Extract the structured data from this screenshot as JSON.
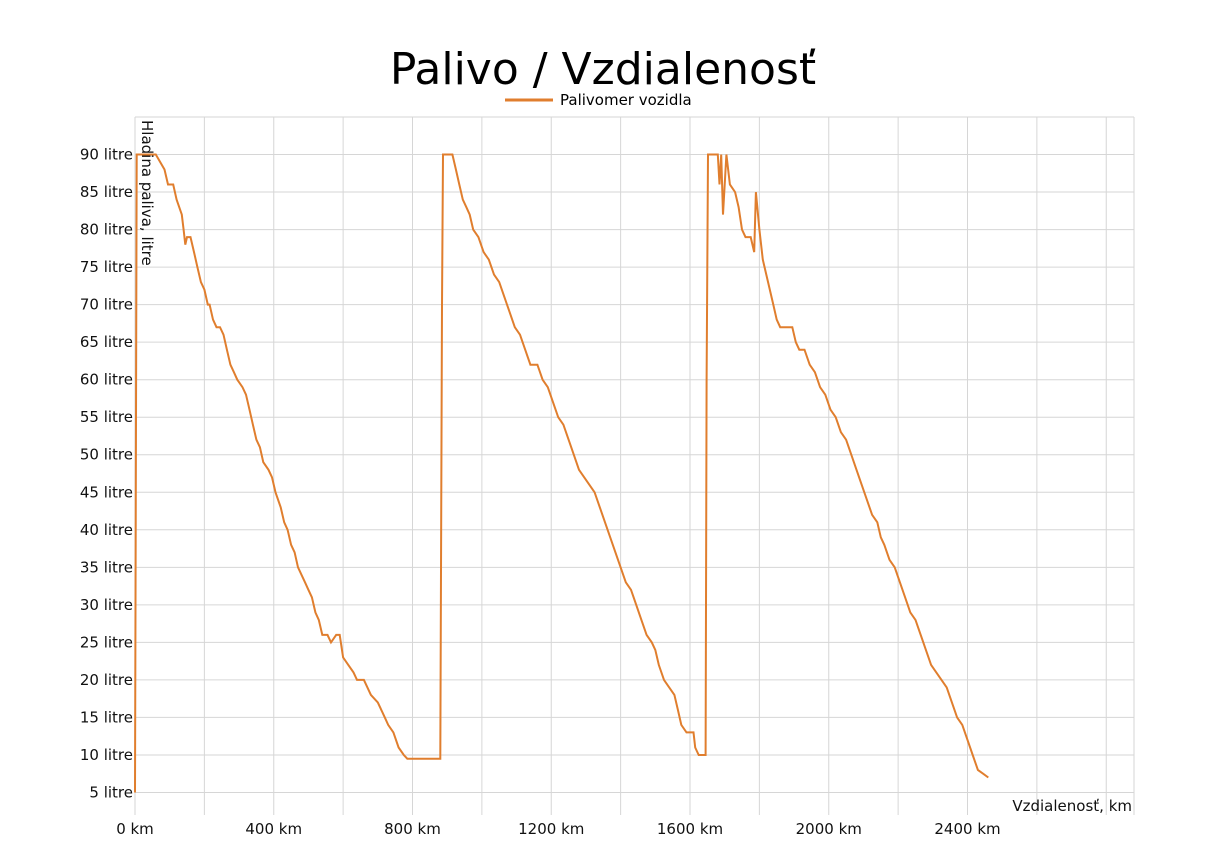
{
  "chart_data": {
    "type": "line",
    "title": "Palivo / Vzdialenosť",
    "xlabel": "Vzdialenosť, km",
    "ylabel": "Hladina paliva, litre",
    "xlim": [
      0,
      2880
    ],
    "ylim": [
      2,
      95
    ],
    "x_ticks": [
      {
        "value": 0,
        "label": "0 km"
      },
      {
        "value": 400,
        "label": "400 km"
      },
      {
        "value": 800,
        "label": "800 km"
      },
      {
        "value": 1200,
        "label": "1200 km"
      },
      {
        "value": 1600,
        "label": "1600 km"
      },
      {
        "value": 2000,
        "label": "2000 km"
      },
      {
        "value": 2400,
        "label": "2400 km"
      }
    ],
    "x_grid": [
      0,
      200,
      400,
      600,
      800,
      1000,
      1200,
      1400,
      1600,
      1800,
      2000,
      2200,
      2400,
      2600,
      2800
    ],
    "y_ticks": [
      {
        "value": 5,
        "label": "5 litre"
      },
      {
        "value": 10,
        "label": "10 litre"
      },
      {
        "value": 15,
        "label": "15 litre"
      },
      {
        "value": 20,
        "label": "20 litre"
      },
      {
        "value": 25,
        "label": "25 litre"
      },
      {
        "value": 30,
        "label": "30 litre"
      },
      {
        "value": 35,
        "label": "35 litre"
      },
      {
        "value": 40,
        "label": "40 litre"
      },
      {
        "value": 45,
        "label": "45 litre"
      },
      {
        "value": 50,
        "label": "50 litre"
      },
      {
        "value": 55,
        "label": "55 litre"
      },
      {
        "value": 60,
        "label": "60 litre"
      },
      {
        "value": 65,
        "label": "65 litre"
      },
      {
        "value": 70,
        "label": "70 litre"
      },
      {
        "value": 75,
        "label": "75 litre"
      },
      {
        "value": 80,
        "label": "80 litre"
      },
      {
        "value": 85,
        "label": "85 litre"
      },
      {
        "value": 90,
        "label": "90 litre"
      }
    ],
    "grid": true,
    "legend_position": "top-center",
    "series": [
      {
        "name": "Palivomer vozidla",
        "color": "#e07e2e",
        "points": [
          [
            0,
            5
          ],
          [
            5,
            90
          ],
          [
            30,
            90
          ],
          [
            60,
            90
          ],
          [
            85,
            88
          ],
          [
            95,
            86
          ],
          [
            110,
            86
          ],
          [
            120,
            84
          ],
          [
            135,
            82
          ],
          [
            140,
            80
          ],
          [
            145,
            78
          ],
          [
            150,
            79
          ],
          [
            160,
            79
          ],
          [
            170,
            77
          ],
          [
            180,
            75
          ],
          [
            190,
            73
          ],
          [
            200,
            72
          ],
          [
            210,
            70
          ],
          [
            215,
            70
          ],
          [
            225,
            68
          ],
          [
            235,
            67
          ],
          [
            245,
            67
          ],
          [
            255,
            66
          ],
          [
            265,
            64
          ],
          [
            275,
            62
          ],
          [
            285,
            61
          ],
          [
            295,
            60
          ],
          [
            310,
            59
          ],
          [
            320,
            58
          ],
          [
            330,
            56
          ],
          [
            340,
            54
          ],
          [
            350,
            52
          ],
          [
            360,
            51
          ],
          [
            370,
            49
          ],
          [
            385,
            48
          ],
          [
            395,
            47
          ],
          [
            405,
            45
          ],
          [
            420,
            43
          ],
          [
            430,
            41
          ],
          [
            440,
            40
          ],
          [
            450,
            38
          ],
          [
            460,
            37
          ],
          [
            470,
            35
          ],
          [
            480,
            34
          ],
          [
            490,
            33
          ],
          [
            500,
            32
          ],
          [
            510,
            31
          ],
          [
            520,
            29
          ],
          [
            530,
            28
          ],
          [
            540,
            26
          ],
          [
            555,
            26
          ],
          [
            565,
            25
          ],
          [
            580,
            26
          ],
          [
            590,
            26
          ],
          [
            600,
            23
          ],
          [
            615,
            22
          ],
          [
            630,
            21
          ],
          [
            640,
            20
          ],
          [
            660,
            20
          ],
          [
            680,
            18
          ],
          [
            700,
            17
          ],
          [
            710,
            16
          ],
          [
            720,
            15
          ],
          [
            730,
            14
          ],
          [
            745,
            13
          ],
          [
            760,
            11
          ],
          [
            775,
            10
          ],
          [
            785,
            9.5
          ],
          [
            800,
            9.5
          ],
          [
            800,
            9.5
          ],
          [
            880,
            9.5
          ],
          [
            885,
            70
          ],
          [
            888,
            90
          ],
          [
            900,
            90
          ],
          [
            915,
            90
          ],
          [
            925,
            88
          ],
          [
            935,
            86
          ],
          [
            945,
            84
          ],
          [
            955,
            83
          ],
          [
            965,
            82
          ],
          [
            975,
            80
          ],
          [
            990,
            79
          ],
          [
            1005,
            77
          ],
          [
            1020,
            76
          ],
          [
            1035,
            74
          ],
          [
            1050,
            73
          ],
          [
            1065,
            71
          ],
          [
            1080,
            69
          ],
          [
            1095,
            67
          ],
          [
            1110,
            66
          ],
          [
            1125,
            64
          ],
          [
            1140,
            62
          ],
          [
            1160,
            62
          ],
          [
            1175,
            60
          ],
          [
            1190,
            59
          ],
          [
            1205,
            57
          ],
          [
            1220,
            55
          ],
          [
            1235,
            54
          ],
          [
            1250,
            52
          ],
          [
            1265,
            50
          ],
          [
            1280,
            48
          ],
          [
            1295,
            47
          ],
          [
            1310,
            46
          ],
          [
            1325,
            45
          ],
          [
            1340,
            43
          ],
          [
            1355,
            41
          ],
          [
            1370,
            39
          ],
          [
            1385,
            37
          ],
          [
            1400,
            35
          ],
          [
            1415,
            33
          ],
          [
            1430,
            32
          ],
          [
            1445,
            30
          ],
          [
            1460,
            28
          ],
          [
            1475,
            26
          ],
          [
            1490,
            25
          ],
          [
            1500,
            24
          ],
          [
            1510,
            22
          ],
          [
            1525,
            20
          ],
          [
            1540,
            19
          ],
          [
            1555,
            18
          ],
          [
            1565,
            16
          ],
          [
            1575,
            14
          ],
          [
            1590,
            13
          ],
          [
            1600,
            13
          ],
          [
            1610,
            13
          ],
          [
            1615,
            11
          ],
          [
            1625,
            10
          ],
          [
            1645,
            10
          ],
          [
            1648,
            60
          ],
          [
            1652,
            90
          ],
          [
            1680,
            90
          ],
          [
            1685,
            86
          ],
          [
            1690,
            90
          ],
          [
            1695,
            82
          ],
          [
            1705,
            90
          ],
          [
            1715,
            86
          ],
          [
            1730,
            85
          ],
          [
            1740,
            83
          ],
          [
            1750,
            80
          ],
          [
            1760,
            79
          ],
          [
            1775,
            79
          ],
          [
            1785,
            77
          ],
          [
            1790,
            85
          ],
          [
            1800,
            80
          ],
          [
            1810,
            76
          ],
          [
            1820,
            74
          ],
          [
            1830,
            72
          ],
          [
            1840,
            70
          ],
          [
            1850,
            68
          ],
          [
            1860,
            67
          ],
          [
            1880,
            67
          ],
          [
            1895,
            67
          ],
          [
            1905,
            65
          ],
          [
            1915,
            64
          ],
          [
            1930,
            64
          ],
          [
            1945,
            62
          ],
          [
            1960,
            61
          ],
          [
            1975,
            59
          ],
          [
            1990,
            58
          ],
          [
            2005,
            56
          ],
          [
            2020,
            55
          ],
          [
            2035,
            53
          ],
          [
            2050,
            52
          ],
          [
            2065,
            50
          ],
          [
            2080,
            48
          ],
          [
            2095,
            46
          ],
          [
            2110,
            44
          ],
          [
            2125,
            42
          ],
          [
            2140,
            41
          ],
          [
            2150,
            39
          ],
          [
            2160,
            38
          ],
          [
            2175,
            36
          ],
          [
            2190,
            35
          ],
          [
            2205,
            33
          ],
          [
            2220,
            31
          ],
          [
            2235,
            29
          ],
          [
            2250,
            28
          ],
          [
            2265,
            26
          ],
          [
            2280,
            24
          ],
          [
            2295,
            22
          ],
          [
            2310,
            21
          ],
          [
            2325,
            20
          ],
          [
            2340,
            19
          ],
          [
            2355,
            17
          ],
          [
            2370,
            15
          ],
          [
            2385,
            14
          ],
          [
            2400,
            12
          ],
          [
            2415,
            10
          ],
          [
            2430,
            8
          ],
          [
            2445,
            7.5
          ],
          [
            2460,
            7
          ]
        ]
      }
    ]
  }
}
